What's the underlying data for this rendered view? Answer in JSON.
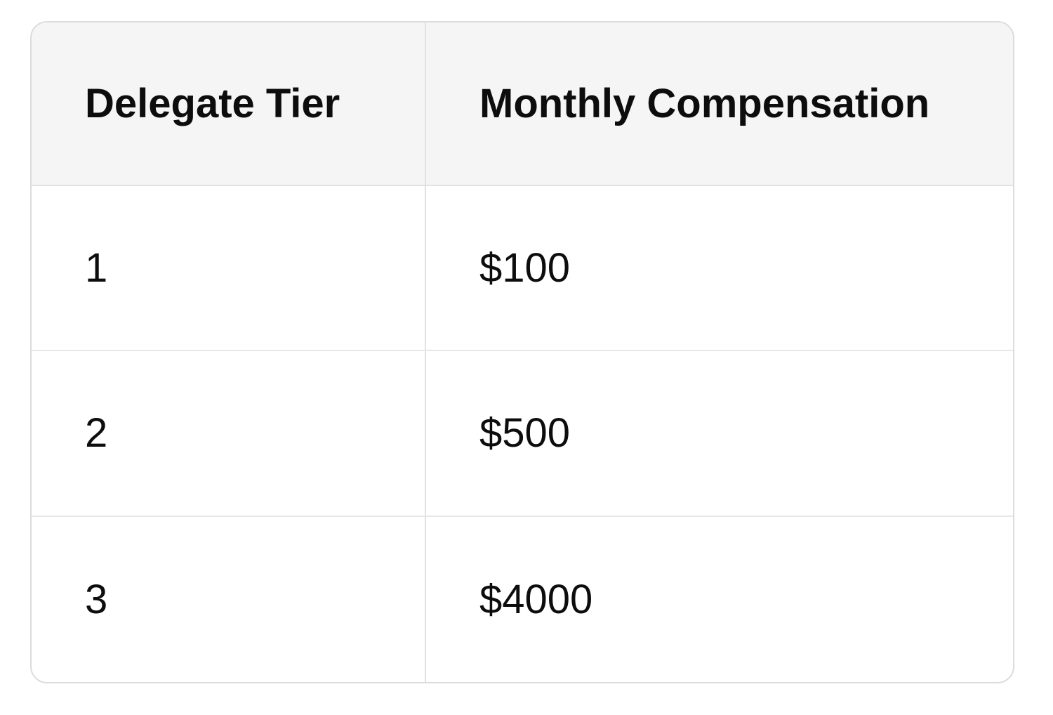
{
  "table": {
    "columns": [
      "Delegate Tier",
      "Monthly Compensation"
    ],
    "rows": [
      [
        "1",
        "$100"
      ],
      [
        "2",
        "$500"
      ],
      [
        "3",
        "$4000"
      ]
    ]
  },
  "chart_data": {
    "type": "table",
    "title": "",
    "columns": [
      "Delegate Tier",
      "Monthly Compensation"
    ],
    "rows": [
      {
        "delegate_tier": "1",
        "monthly_compensation": "$100"
      },
      {
        "delegate_tier": "2",
        "monthly_compensation": "$500"
      },
      {
        "delegate_tier": "3",
        "monthly_compensation": "$4000"
      }
    ],
    "layout": {
      "header_background": "#f5f5f5",
      "body_background": "#ffffff",
      "border_color": "#e2e2e2",
      "outer_border_color": "#dcdcdc",
      "text_color": "#0d0d0d",
      "corner_radius_px": 24
    }
  },
  "colors": {
    "header_bg": "#f5f5f5",
    "body_bg": "#ffffff",
    "border": "#e2e2e2",
    "outer_border": "#dcdcdc",
    "text": "#0d0d0d",
    "page_bg": "#ffffff"
  }
}
